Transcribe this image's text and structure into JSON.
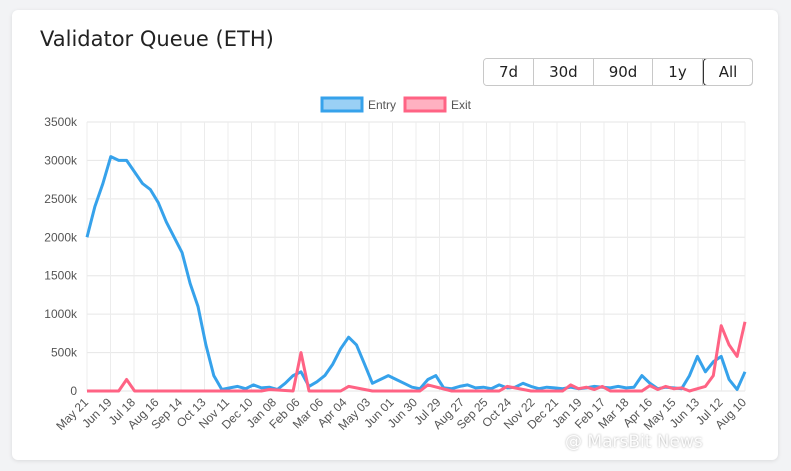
{
  "card": {
    "title": "Validator Queue (ETH)",
    "ranges": [
      "7d",
      "30d",
      "90d",
      "1y",
      "All"
    ],
    "active_range": "All"
  },
  "watermark": "@ MarsBit News",
  "chart_data": {
    "type": "line",
    "title": "",
    "xlabel": "",
    "ylabel": "",
    "ylim": [
      0,
      3500000
    ],
    "yticks": [
      "0",
      "500k",
      "1000k",
      "1500k",
      "2000k",
      "2500k",
      "3000k",
      "3500k"
    ],
    "xticks": [
      "May 21",
      "Jun 19",
      "Jul 18",
      "Aug 16",
      "Sep 14",
      "Oct 13",
      "Nov 11",
      "Dec 10",
      "Jan 08",
      "Feb 06",
      "Mar 06",
      "Apr 04",
      "May 03",
      "Jun 01",
      "Jun 30",
      "Jul 29",
      "Aug 27",
      "Sep 25",
      "Oct 24",
      "Nov 22",
      "Dec 21",
      "Jan 19",
      "Feb 17",
      "Mar 18",
      "Apr 16",
      "May 15",
      "Jun 13",
      "Jul 12",
      "Aug 10"
    ],
    "legend_position": "top",
    "grid": true,
    "series": [
      {
        "name": "Entry",
        "color": "#36a2eb",
        "fill": "#9ad0f5",
        "points": [
          [
            0,
            2000000
          ],
          [
            1,
            2400000
          ],
          [
            2,
            2700000
          ],
          [
            3,
            3050000
          ],
          [
            4,
            3000000
          ],
          [
            5,
            3000000
          ],
          [
            6,
            2850000
          ],
          [
            7,
            2700000
          ],
          [
            8,
            2620000
          ],
          [
            9,
            2450000
          ],
          [
            10,
            2200000
          ],
          [
            11,
            2000000
          ],
          [
            12,
            1800000
          ],
          [
            13,
            1400000
          ],
          [
            14,
            1100000
          ],
          [
            15,
            600000
          ],
          [
            16,
            200000
          ],
          [
            17,
            20000
          ],
          [
            18,
            40000
          ],
          [
            19,
            60000
          ],
          [
            20,
            30000
          ],
          [
            21,
            80000
          ],
          [
            22,
            40000
          ],
          [
            23,
            50000
          ],
          [
            24,
            20000
          ],
          [
            25,
            100000
          ],
          [
            26,
            200000
          ],
          [
            27,
            250000
          ],
          [
            28,
            60000
          ],
          [
            29,
            120000
          ],
          [
            30,
            200000
          ],
          [
            31,
            350000
          ],
          [
            32,
            550000
          ],
          [
            33,
            700000
          ],
          [
            34,
            600000
          ],
          [
            35,
            350000
          ],
          [
            36,
            100000
          ],
          [
            37,
            150000
          ],
          [
            38,
            200000
          ],
          [
            39,
            150000
          ],
          [
            40,
            100000
          ],
          [
            41,
            50000
          ],
          [
            42,
            30000
          ],
          [
            43,
            150000
          ],
          [
            44,
            200000
          ],
          [
            45,
            40000
          ],
          [
            46,
            30000
          ],
          [
            47,
            60000
          ],
          [
            48,
            80000
          ],
          [
            49,
            40000
          ],
          [
            50,
            50000
          ],
          [
            51,
            30000
          ],
          [
            52,
            80000
          ],
          [
            53,
            40000
          ],
          [
            54,
            50000
          ],
          [
            55,
            100000
          ],
          [
            56,
            60000
          ],
          [
            57,
            30000
          ],
          [
            58,
            50000
          ],
          [
            59,
            40000
          ],
          [
            60,
            30000
          ],
          [
            61,
            50000
          ],
          [
            62,
            30000
          ],
          [
            63,
            40000
          ],
          [
            64,
            60000
          ],
          [
            65,
            50000
          ],
          [
            66,
            40000
          ],
          [
            67,
            60000
          ],
          [
            68,
            40000
          ],
          [
            69,
            50000
          ],
          [
            70,
            200000
          ],
          [
            71,
            100000
          ],
          [
            72,
            30000
          ],
          [
            73,
            50000
          ],
          [
            74,
            40000
          ],
          [
            75,
            30000
          ],
          [
            76,
            200000
          ],
          [
            77,
            450000
          ],
          [
            78,
            250000
          ],
          [
            79,
            380000
          ],
          [
            80,
            450000
          ],
          [
            81,
            150000
          ],
          [
            82,
            20000
          ],
          [
            83,
            250000
          ]
        ]
      },
      {
        "name": "Exit",
        "color": "#ff6384",
        "fill": "#ffb1c1",
        "points": [
          [
            0,
            0
          ],
          [
            4,
            0
          ],
          [
            5,
            150000
          ],
          [
            6,
            0
          ],
          [
            22,
            0
          ],
          [
            23,
            20000
          ],
          [
            26,
            0
          ],
          [
            27,
            500000
          ],
          [
            28,
            0
          ],
          [
            32,
            0
          ],
          [
            33,
            60000
          ],
          [
            36,
            0
          ],
          [
            42,
            0
          ],
          [
            43,
            80000
          ],
          [
            46,
            0
          ],
          [
            52,
            0
          ],
          [
            53,
            60000
          ],
          [
            56,
            0
          ],
          [
            60,
            0
          ],
          [
            61,
            80000
          ],
          [
            62,
            30000
          ],
          [
            63,
            50000
          ],
          [
            64,
            20000
          ],
          [
            65,
            60000
          ],
          [
            66,
            0
          ],
          [
            70,
            0
          ],
          [
            71,
            70000
          ],
          [
            72,
            20000
          ],
          [
            73,
            60000
          ],
          [
            74,
            30000
          ],
          [
            75,
            40000
          ],
          [
            76,
            0
          ],
          [
            77,
            30000
          ],
          [
            78,
            60000
          ],
          [
            79,
            200000
          ],
          [
            80,
            850000
          ],
          [
            81,
            600000
          ],
          [
            82,
            450000
          ],
          [
            83,
            900000
          ]
        ]
      }
    ]
  }
}
